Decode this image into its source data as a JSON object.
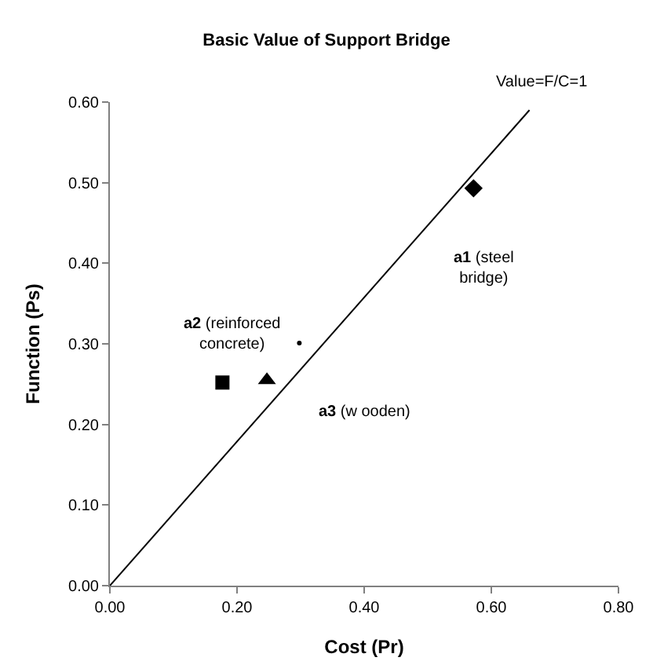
{
  "chart_data": {
    "type": "scatter",
    "title": "Basic Value of Support Bridge",
    "xlabel": "Cost (Pr)",
    "ylabel": "Function (Ps)",
    "xlim": [
      0,
      0.8
    ],
    "ylim": [
      0,
      0.6
    ],
    "xticks": [
      {
        "value": 0,
        "label": "0.00"
      },
      {
        "value": 0.2,
        "label": "0.20"
      },
      {
        "value": 0.4,
        "label": "0.40"
      },
      {
        "value": 0.6,
        "label": "0.60"
      },
      {
        "value": 0.8,
        "label": "0.80"
      }
    ],
    "yticks": [
      {
        "value": 0,
        "label": "0.00"
      },
      {
        "value": 0.1,
        "label": "0.10"
      },
      {
        "value": 0.2,
        "label": "0.20"
      },
      {
        "value": 0.3,
        "label": "0.30"
      },
      {
        "value": 0.4,
        "label": "0.40"
      },
      {
        "value": 0.5,
        "label": "0.50"
      },
      {
        "value": 0.6,
        "label": "0.60"
      }
    ],
    "series": [
      {
        "type": "line",
        "color": "#000000",
        "x": [
          0,
          0.66
        ],
        "values": [
          0,
          0.59
        ],
        "marker": "none"
      },
      {
        "color": "#000000",
        "x": [
          0.572
        ],
        "values": [
          0.493
        ],
        "marker": "diamond"
      },
      {
        "color": "#000000",
        "x": [
          0.177
        ],
        "values": [
          0.252
        ],
        "marker": "square"
      },
      {
        "color": "#000000",
        "x": [
          0.247
        ],
        "values": [
          0.255
        ],
        "marker": "triangle"
      },
      {
        "color": "#000000",
        "x": [
          0.298
        ],
        "values": [
          0.301
        ],
        "marker": "circle"
      }
    ],
    "annotations": [
      {
        "text": "Value=F/C=1",
        "x": 0.66,
        "y": 0.59
      },
      "a1 (steel\nbridge)",
      "a2 (reinforced\nconcrete)",
      "a3 (w ooden)"
    ]
  }
}
